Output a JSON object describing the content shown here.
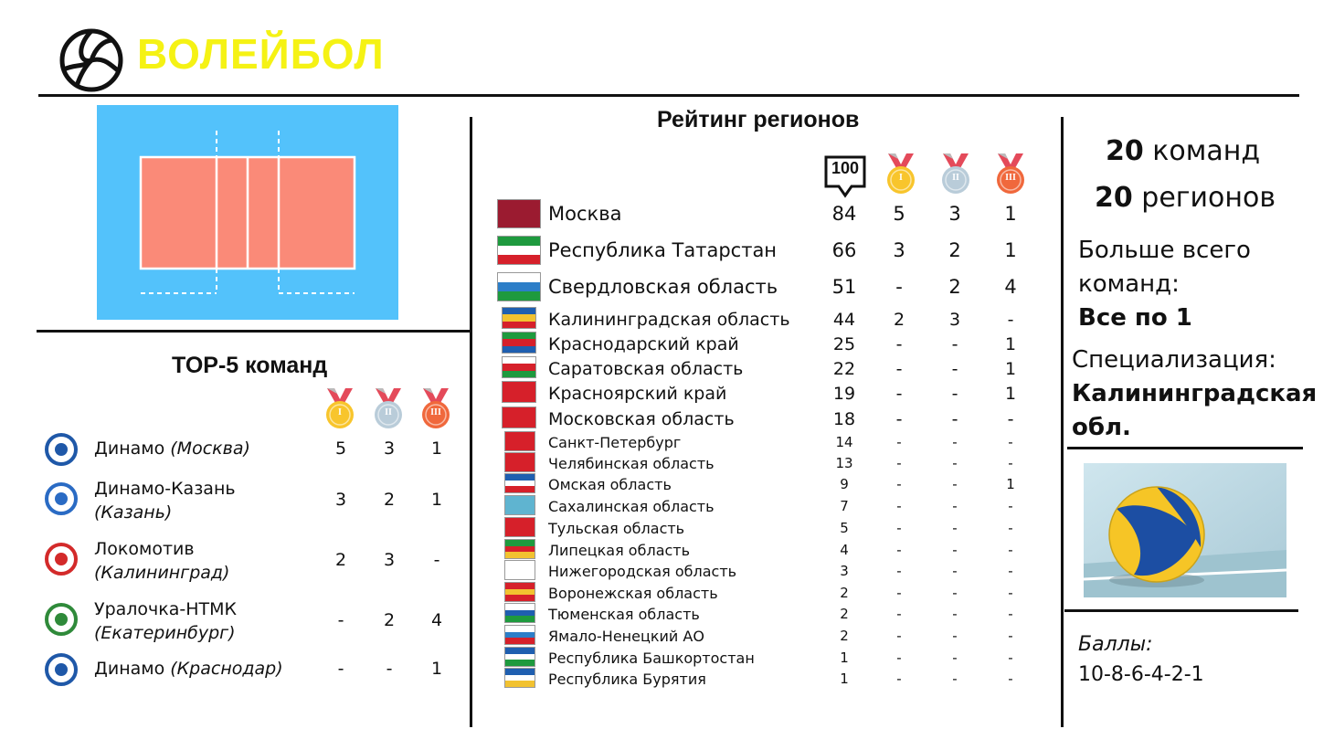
{
  "header": {
    "title": "ВОЛЕЙБОЛ"
  },
  "top5": {
    "heading": "TOP-5 команд",
    "medals": [
      "I",
      "II",
      "III"
    ],
    "teams": [
      {
        "name": "Динамо",
        "city": "(Москва)",
        "gold": "5",
        "silver": "3",
        "bronze": "1"
      },
      {
        "name": "Динамо-Казань",
        "city": "(Казань)",
        "gold": "3",
        "silver": "2",
        "bronze": "1"
      },
      {
        "name": "Локомотив",
        "city": "(Калининград)",
        "gold": "2",
        "silver": "3",
        "bronze": "-"
      },
      {
        "name": "Уралочка-НТМК",
        "city": "(Екатеринбург)",
        "gold": "-",
        "silver": "2",
        "bronze": "4"
      },
      {
        "name": "Динамо",
        "city": "(Краснодар)",
        "gold": "-",
        "silver": "-",
        "bronze": "1"
      }
    ]
  },
  "regions": {
    "heading": "Рейтинг регионов",
    "points_badge": "100",
    "medals": [
      "I",
      "II",
      "III"
    ],
    "rows": [
      {
        "name": "Москва",
        "points": "84",
        "gold": "5",
        "silver": "3",
        "bronze": "1"
      },
      {
        "name": "Республика Татарстан",
        "points": "66",
        "gold": "3",
        "silver": "2",
        "bronze": "1"
      },
      {
        "name": "Свердловская  область",
        "points": "51",
        "gold": "-",
        "silver": "2",
        "bronze": "4"
      },
      {
        "name": "Калининградская область",
        "points": "44",
        "gold": "2",
        "silver": "3",
        "bronze": "-"
      },
      {
        "name": "Краснодарский край",
        "points": "25",
        "gold": "-",
        "silver": "-",
        "bronze": "1"
      },
      {
        "name": "Саратовская область",
        "points": "22",
        "gold": "-",
        "silver": "-",
        "bronze": "1"
      },
      {
        "name": "Красноярский край",
        "points": "19",
        "gold": "-",
        "silver": "-",
        "bronze": "1"
      },
      {
        "name": "Московская область",
        "points": "18",
        "gold": "-",
        "silver": "-",
        "bronze": "-"
      },
      {
        "name": "Санкт-Петербург",
        "points": "14",
        "gold": "-",
        "silver": "-",
        "bronze": "-"
      },
      {
        "name": "Челябинская область",
        "points": "13",
        "gold": "-",
        "silver": "-",
        "bronze": "-"
      },
      {
        "name": "Омская область",
        "points": "9",
        "gold": "-",
        "silver": "-",
        "bronze": "1"
      },
      {
        "name": "Сахалинская область",
        "points": "7",
        "gold": "-",
        "silver": "-",
        "bronze": "-"
      },
      {
        "name": "Тульская область",
        "points": "5",
        "gold": "-",
        "silver": "-",
        "bronze": "-"
      },
      {
        "name": "Липецкая область",
        "points": "4",
        "gold": "-",
        "silver": "-",
        "bronze": "-"
      },
      {
        "name": "Нижегородская область",
        "points": "3",
        "gold": "-",
        "silver": "-",
        "bronze": "-"
      },
      {
        "name": "Воронежская область",
        "points": "2",
        "gold": "-",
        "silver": "-",
        "bronze": "-"
      },
      {
        "name": "Тюменская область",
        "points": "2",
        "gold": "-",
        "silver": "-",
        "bronze": "-"
      },
      {
        "name": "Ямало-Ненецкий АО",
        "points": "2",
        "gold": "-",
        "silver": "-",
        "bronze": "-"
      },
      {
        "name": "Республика Башкортостан",
        "points": "1",
        "gold": "-",
        "silver": "-",
        "bronze": "-"
      },
      {
        "name": "Республика Бурятия",
        "points": "1",
        "gold": "-",
        "silver": "-",
        "bronze": "-"
      }
    ]
  },
  "summary": {
    "teams_count": "20",
    "teams_label": "команд",
    "regions_count": "20",
    "regions_label": "регионов",
    "most_teams_label_1": "Больше всего",
    "most_teams_label_2": "команд:",
    "most_teams_value": "Все по 1",
    "specialization_label": "Специализация:",
    "specialization_value_1": "Калининградская",
    "specialization_value_2": "обл.",
    "points_label": "Баллы:",
    "points_value": "10-8-6-4-2-1"
  },
  "colors": {
    "title": "#f5f214",
    "court_bg": "#53c2fb",
    "court_field": "#fa8a78",
    "gold": "#f8c52c",
    "silver": "#b9ccd9",
    "bronze": "#f0683c",
    "ribbon": "#e44a5a"
  }
}
